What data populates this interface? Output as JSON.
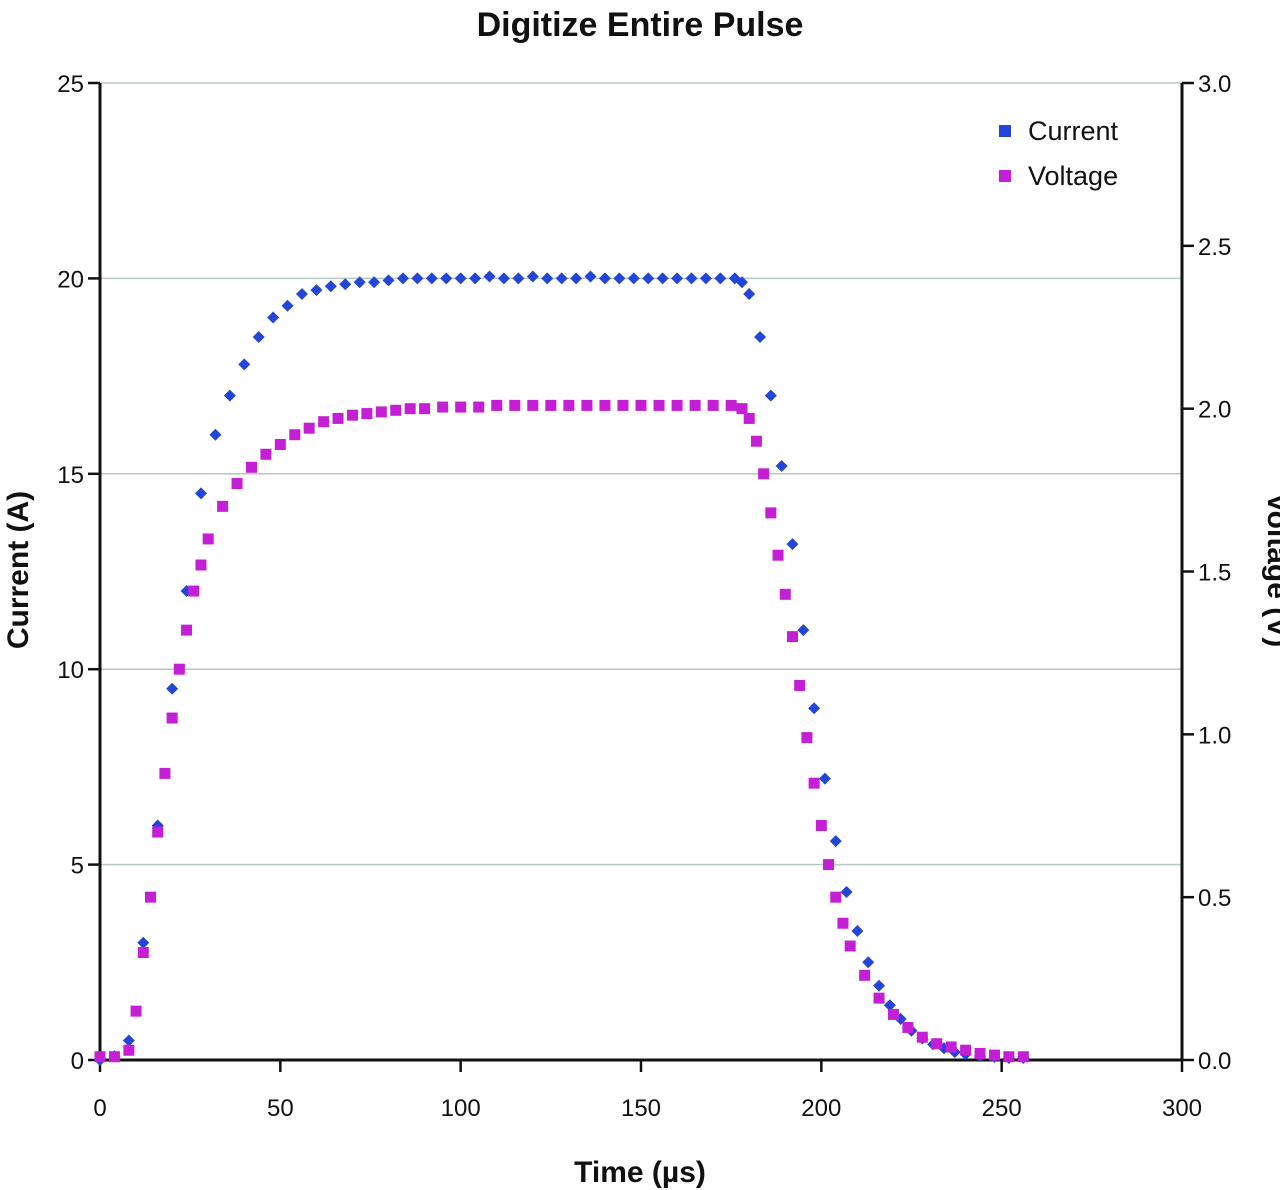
{
  "chart_data": {
    "type": "scatter",
    "title": "Digitize Entire Pulse",
    "xlabel": "Time (µs)",
    "ylabel": "Current (A)",
    "y2label": "Voltage (V)",
    "xlim": [
      0,
      300
    ],
    "ylim": [
      0,
      25
    ],
    "y2lim": [
      0,
      3.0
    ],
    "xticks": [
      "0",
      "50",
      "100",
      "150",
      "200",
      "250",
      "300"
    ],
    "yticks": [
      "0",
      "5",
      "10",
      "15",
      "20",
      "25"
    ],
    "y2ticks": [
      "0.0",
      "0.5",
      "1.0",
      "1.5",
      "2.0",
      "2.5",
      "3.0"
    ],
    "grid": "horizontal",
    "legend_position": "top-right",
    "series": [
      {
        "name": "Current",
        "axis": "left",
        "color": "#2346d8",
        "marker": "diamond",
        "x": [
          0,
          4,
          8,
          12,
          16,
          20,
          24,
          28,
          32,
          36,
          40,
          44,
          48,
          52,
          56,
          60,
          64,
          68,
          72,
          76,
          80,
          84,
          88,
          92,
          96,
          100,
          104,
          108,
          112,
          116,
          120,
          124,
          128,
          132,
          136,
          140,
          144,
          148,
          152,
          156,
          160,
          164,
          168,
          172,
          176,
          178,
          180,
          183,
          186,
          189,
          192,
          195,
          198,
          201,
          204,
          207,
          210,
          213,
          216,
          219,
          222,
          225,
          228,
          231,
          234,
          237,
          240,
          244,
          248,
          252,
          256
        ],
        "y": [
          0.0,
          0.1,
          0.5,
          3.0,
          6.0,
          9.5,
          12.0,
          14.5,
          16.0,
          17.0,
          17.8,
          18.5,
          19.0,
          19.3,
          19.6,
          19.7,
          19.8,
          19.85,
          19.9,
          19.9,
          19.95,
          20.0,
          20.0,
          20.0,
          20.0,
          20.0,
          20.0,
          20.05,
          20.0,
          20.0,
          20.05,
          20.0,
          20.0,
          20.0,
          20.05,
          20.0,
          20.0,
          20.0,
          20.0,
          20.0,
          20.0,
          20.0,
          20.0,
          20.0,
          20.0,
          19.9,
          19.6,
          18.5,
          17.0,
          15.2,
          13.2,
          11.0,
          9.0,
          7.2,
          5.6,
          4.3,
          3.3,
          2.5,
          1.9,
          1.4,
          1.05,
          0.75,
          0.55,
          0.4,
          0.3,
          0.2,
          0.15,
          0.1,
          0.08,
          0.05,
          0.05
        ]
      },
      {
        "name": "Voltage",
        "axis": "right",
        "color": "#c51fd6",
        "marker": "square",
        "x": [
          0,
          4,
          8,
          10,
          12,
          14,
          16,
          18,
          20,
          22,
          24,
          26,
          28,
          30,
          34,
          38,
          42,
          46,
          50,
          54,
          58,
          62,
          66,
          70,
          74,
          78,
          82,
          86,
          90,
          95,
          100,
          105,
          110,
          115,
          120,
          125,
          130,
          135,
          140,
          145,
          150,
          155,
          160,
          165,
          170,
          175,
          178,
          180,
          182,
          184,
          186,
          188,
          190,
          192,
          194,
          196,
          198,
          200,
          202,
          204,
          206,
          208,
          212,
          216,
          220,
          224,
          228,
          232,
          236,
          240,
          244,
          248,
          252,
          256
        ],
        "y": [
          0.01,
          0.01,
          0.03,
          0.15,
          0.33,
          0.5,
          0.7,
          0.88,
          1.05,
          1.2,
          1.32,
          1.44,
          1.52,
          1.6,
          1.7,
          1.77,
          1.82,
          1.86,
          1.89,
          1.92,
          1.94,
          1.96,
          1.97,
          1.98,
          1.985,
          1.99,
          1.995,
          2.0,
          2.0,
          2.005,
          2.005,
          2.005,
          2.01,
          2.01,
          2.01,
          2.01,
          2.01,
          2.01,
          2.01,
          2.01,
          2.01,
          2.01,
          2.01,
          2.01,
          2.01,
          2.01,
          2.0,
          1.97,
          1.9,
          1.8,
          1.68,
          1.55,
          1.43,
          1.3,
          1.15,
          0.99,
          0.85,
          0.72,
          0.6,
          0.5,
          0.42,
          0.35,
          0.26,
          0.19,
          0.14,
          0.1,
          0.07,
          0.05,
          0.04,
          0.03,
          0.02,
          0.015,
          0.01,
          0.01
        ]
      }
    ]
  }
}
